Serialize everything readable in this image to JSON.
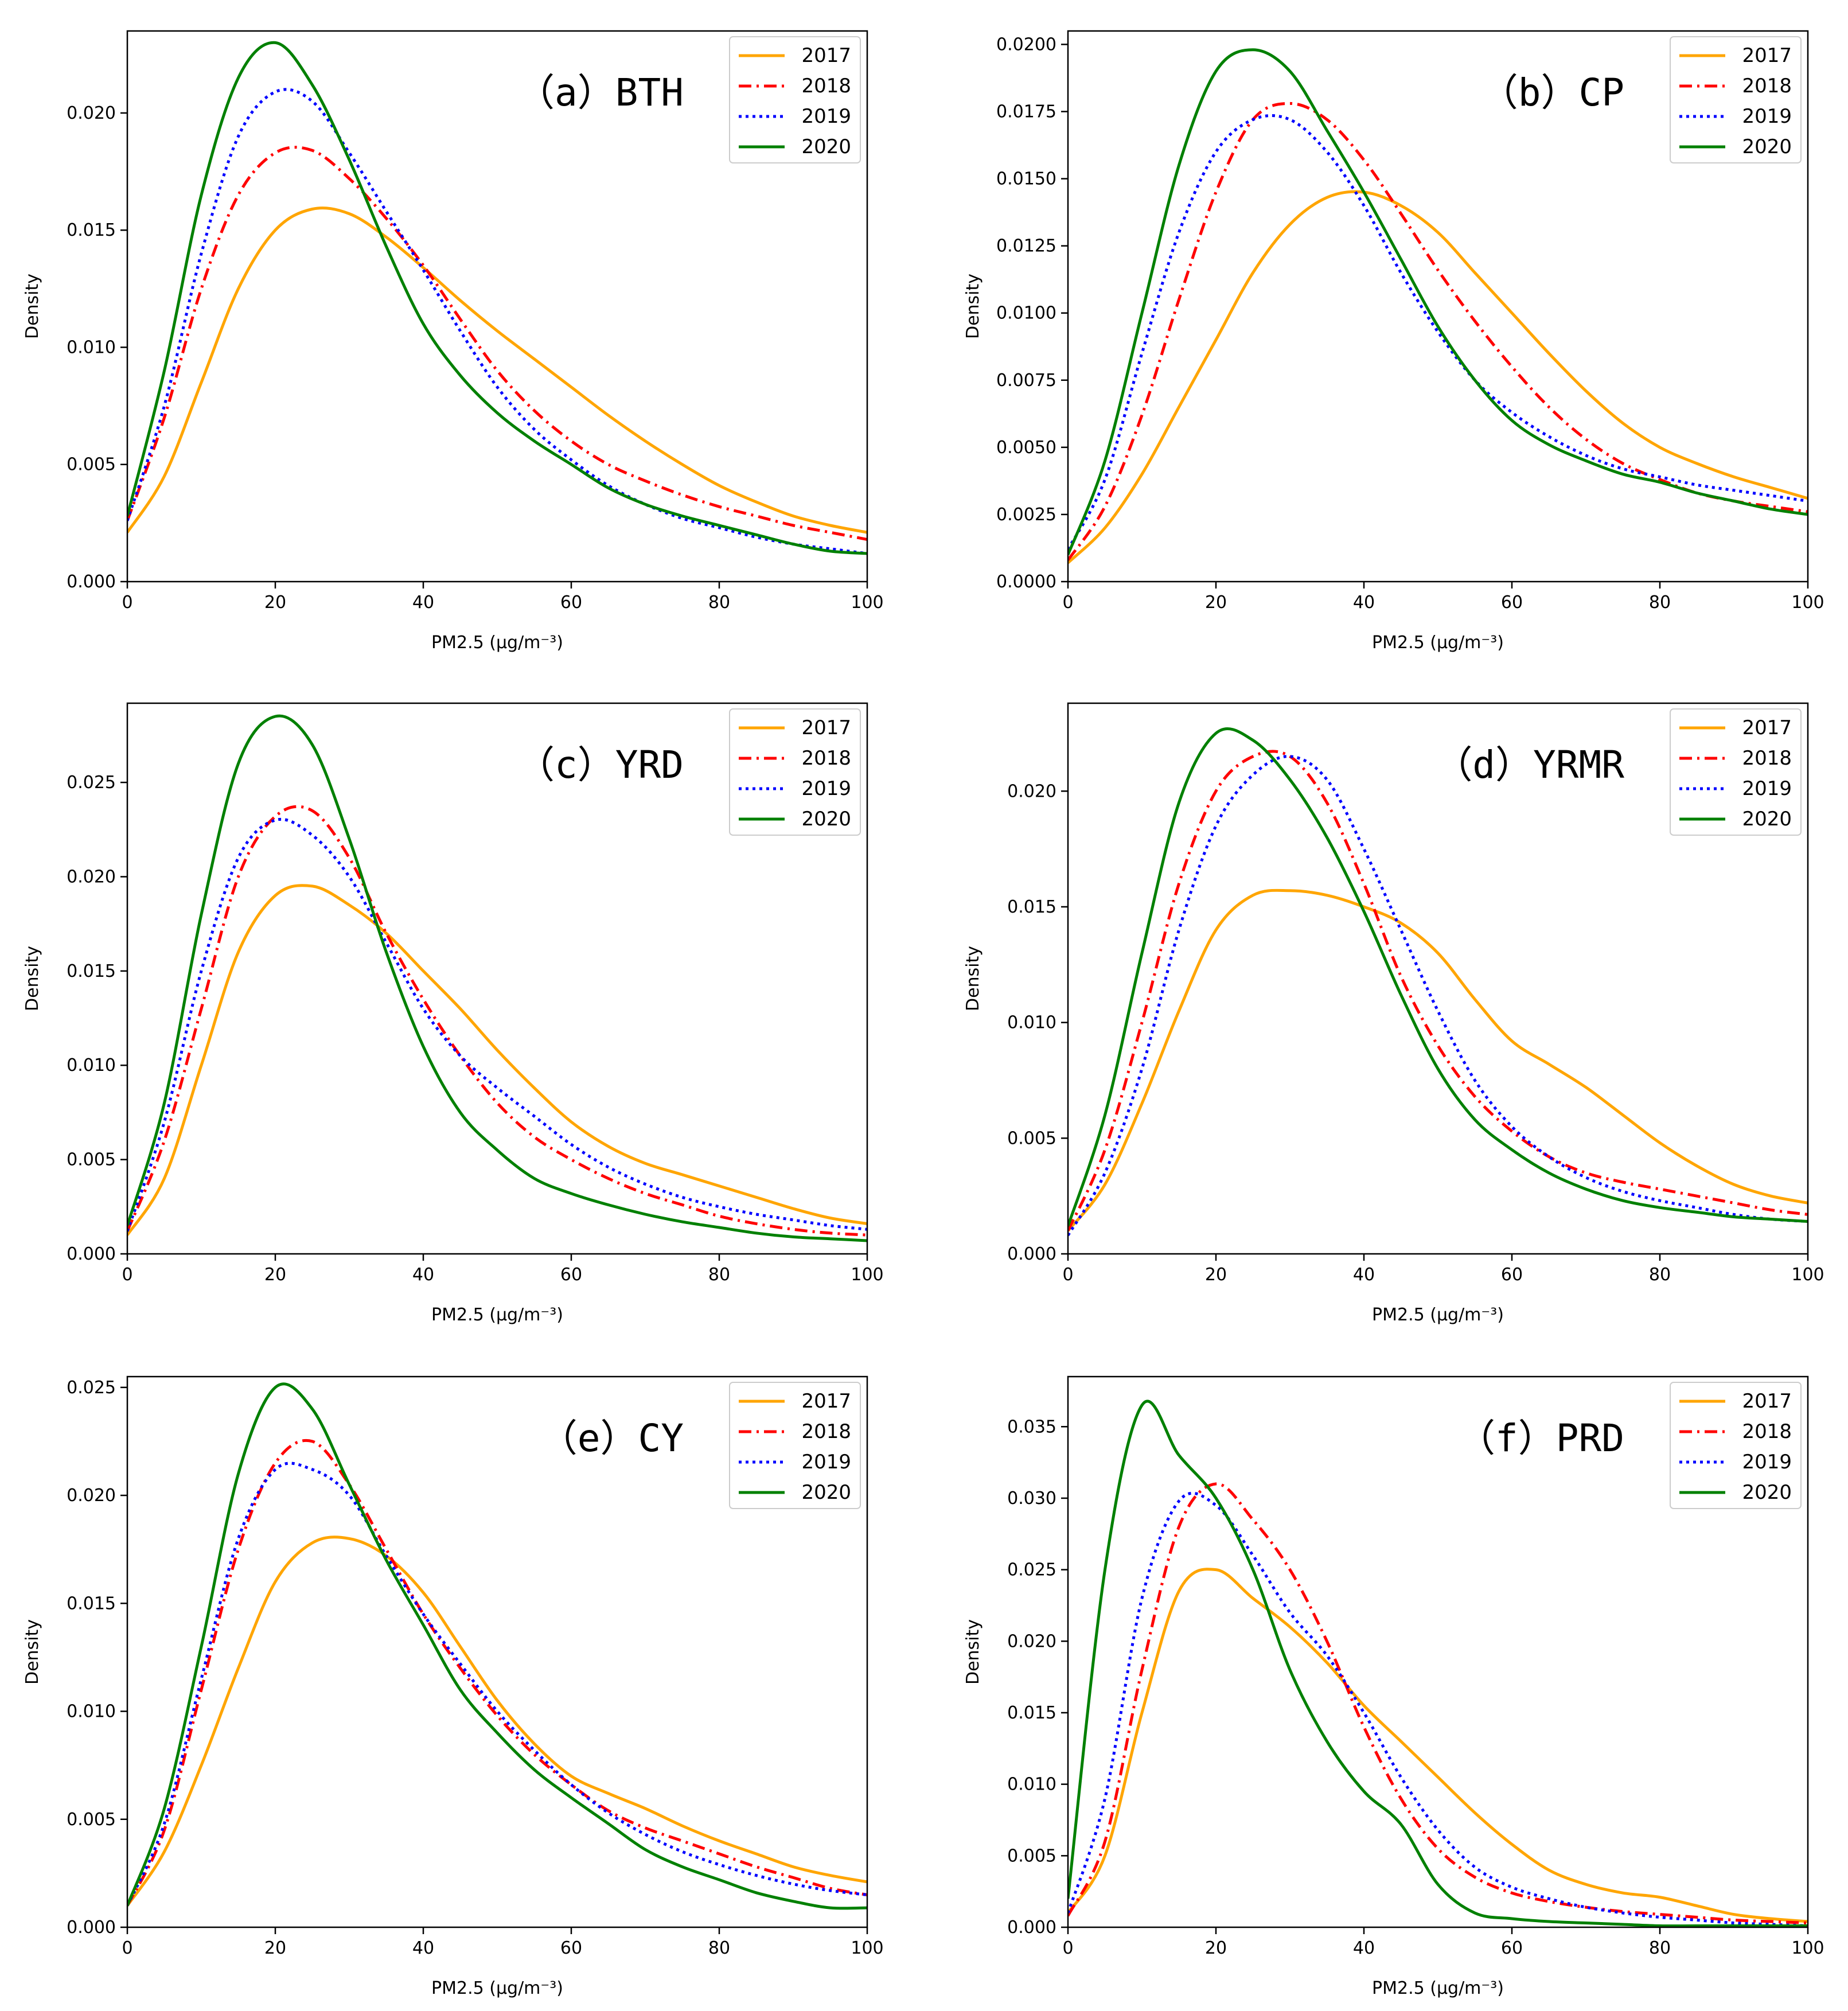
{
  "series_styles": [
    {
      "name": "2017",
      "color": "#ffa500",
      "dash": "solid"
    },
    {
      "name": "2018",
      "color": "#ff0000",
      "dash": "dashdot"
    },
    {
      "name": "2019",
      "color": "#0000ff",
      "dash": "dotted"
    },
    {
      "name": "2020",
      "color": "#008000",
      "dash": "solid"
    }
  ],
  "chart_data": [
    {
      "type": "line",
      "title": "（a）BTH",
      "xlabel": "PM2.5 (μg/m⁻³)",
      "ylabel": "Density",
      "xlim": [
        0,
        100
      ],
      "ylim": [
        0,
        0.0235
      ],
      "xticks": [
        0,
        20,
        40,
        60,
        80,
        100
      ],
      "yticks": [
        0.0,
        0.005,
        0.01,
        0.015,
        0.02
      ],
      "ytick_labels": [
        "0.000",
        "0.005",
        "0.010",
        "0.015",
        "0.020"
      ],
      "x": [
        0,
        5,
        10,
        15,
        20,
        25,
        30,
        35,
        40,
        45,
        50,
        55,
        60,
        65,
        70,
        75,
        80,
        85,
        90,
        95,
        100
      ],
      "series": [
        {
          "name": "2017",
          "values": [
            0.0021,
            0.0045,
            0.0085,
            0.0125,
            0.015,
            0.0159,
            0.0157,
            0.0147,
            0.0134,
            0.012,
            0.0107,
            0.0095,
            0.0083,
            0.0071,
            0.006,
            0.005,
            0.0041,
            0.0034,
            0.0028,
            0.0024,
            0.0021
          ]
        },
        {
          "name": "2018",
          "values": [
            0.0026,
            0.007,
            0.0125,
            0.0165,
            0.0183,
            0.0184,
            0.0172,
            0.0155,
            0.0135,
            0.0112,
            0.009,
            0.0073,
            0.006,
            0.005,
            0.0043,
            0.0037,
            0.0032,
            0.0028,
            0.0024,
            0.0021,
            0.0018
          ]
        },
        {
          "name": "2019",
          "values": [
            0.0026,
            0.0075,
            0.014,
            0.019,
            0.0209,
            0.0205,
            0.0183,
            0.0158,
            0.0133,
            0.0107,
            0.0083,
            0.0065,
            0.0052,
            0.0041,
            0.0033,
            0.0027,
            0.0023,
            0.0019,
            0.0016,
            0.0014,
            0.0012
          ]
        },
        {
          "name": "2020",
          "values": [
            0.0028,
            0.009,
            0.0165,
            0.0215,
            0.023,
            0.0212,
            0.018,
            0.0143,
            0.011,
            0.0088,
            0.0072,
            0.006,
            0.005,
            0.004,
            0.0033,
            0.0028,
            0.0024,
            0.002,
            0.0016,
            0.0013,
            0.0012
          ]
        }
      ]
    },
    {
      "type": "line",
      "title": "（b）CP",
      "xlabel": "PM2.5 (μg/m⁻³)",
      "ylabel": "Density",
      "xlim": [
        0,
        100
      ],
      "ylim": [
        0,
        0.0205
      ],
      "xticks": [
        0,
        20,
        40,
        60,
        80,
        100
      ],
      "yticks": [
        0.0,
        0.0025,
        0.005,
        0.0075,
        0.01,
        0.0125,
        0.015,
        0.0175,
        0.02
      ],
      "ytick_labels": [
        "0.0000",
        "0.0025",
        "0.0050",
        "0.0075",
        "0.0100",
        "0.0125",
        "0.0150",
        "0.0175",
        "0.0200"
      ],
      "x": [
        0,
        5,
        10,
        15,
        20,
        25,
        30,
        35,
        40,
        45,
        50,
        55,
        60,
        65,
        70,
        75,
        80,
        85,
        90,
        95,
        100
      ],
      "series": [
        {
          "name": "2017",
          "values": [
            0.0007,
            0.002,
            0.004,
            0.0065,
            0.009,
            0.0115,
            0.0133,
            0.0143,
            0.0145,
            0.014,
            0.013,
            0.0115,
            0.01,
            0.0085,
            0.0071,
            0.0059,
            0.005,
            0.0044,
            0.0039,
            0.0035,
            0.0031
          ]
        },
        {
          "name": "2018",
          "values": [
            0.0008,
            0.0028,
            0.0062,
            0.0105,
            0.0145,
            0.0172,
            0.0178,
            0.0172,
            0.0157,
            0.0137,
            0.0116,
            0.0097,
            0.008,
            0.0065,
            0.0053,
            0.0044,
            0.0038,
            0.0033,
            0.003,
            0.0028,
            0.0026
          ]
        },
        {
          "name": "2019",
          "values": [
            0.0012,
            0.0038,
            0.0085,
            0.013,
            0.016,
            0.0172,
            0.0172,
            0.016,
            0.014,
            0.0115,
            0.0093,
            0.0075,
            0.0063,
            0.0054,
            0.0047,
            0.0042,
            0.0039,
            0.0036,
            0.0034,
            0.0032,
            0.003
          ]
        },
        {
          "name": "2020",
          "values": [
            0.001,
            0.0045,
            0.01,
            0.0155,
            0.019,
            0.0198,
            0.019,
            0.0168,
            0.0145,
            0.012,
            0.0095,
            0.0075,
            0.006,
            0.0051,
            0.0045,
            0.004,
            0.0037,
            0.0033,
            0.003,
            0.0027,
            0.0025
          ]
        }
      ]
    },
    {
      "type": "line",
      "title": "（c）YRD",
      "xlabel": "PM2.5 (μg/m⁻³)",
      "ylabel": "Density",
      "xlim": [
        0,
        100
      ],
      "ylim": [
        0,
        0.0292
      ],
      "xticks": [
        0,
        20,
        40,
        60,
        80,
        100
      ],
      "yticks": [
        0.0,
        0.005,
        0.01,
        0.015,
        0.02,
        0.025
      ],
      "ytick_labels": [
        "0.000",
        "0.005",
        "0.010",
        "0.015",
        "0.020",
        "0.025"
      ],
      "x": [
        0,
        5,
        10,
        15,
        20,
        25,
        30,
        35,
        40,
        45,
        50,
        55,
        60,
        65,
        70,
        75,
        80,
        85,
        90,
        95,
        100
      ],
      "series": [
        {
          "name": "2017",
          "values": [
            0.001,
            0.004,
            0.01,
            0.016,
            0.019,
            0.0195,
            0.0185,
            0.017,
            0.015,
            0.013,
            0.0108,
            0.0088,
            0.007,
            0.0057,
            0.0048,
            0.0042,
            0.0036,
            0.003,
            0.0024,
            0.0019,
            0.0016
          ]
        },
        {
          "name": "2018",
          "values": [
            0.0012,
            0.006,
            0.013,
            0.02,
            0.0232,
            0.0235,
            0.021,
            0.017,
            0.0135,
            0.0105,
            0.008,
            0.0062,
            0.005,
            0.004,
            0.0032,
            0.0026,
            0.002,
            0.0016,
            0.0013,
            0.0011,
            0.001
          ]
        },
        {
          "name": "2019",
          "values": [
            0.0012,
            0.007,
            0.015,
            0.021,
            0.023,
            0.0222,
            0.02,
            0.0165,
            0.013,
            0.0105,
            0.0088,
            0.0073,
            0.0058,
            0.0046,
            0.0037,
            0.003,
            0.0025,
            0.0021,
            0.0018,
            0.0015,
            0.0013
          ]
        },
        {
          "name": "2020",
          "values": [
            0.0015,
            0.008,
            0.018,
            0.026,
            0.0285,
            0.027,
            0.022,
            0.016,
            0.011,
            0.0075,
            0.0055,
            0.004,
            0.0032,
            0.0026,
            0.0021,
            0.0017,
            0.0014,
            0.0011,
            0.0009,
            0.0008,
            0.0007
          ]
        }
      ]
    },
    {
      "type": "line",
      "title": "（d）YRMR",
      "xlabel": "PM2.5 (μg/m⁻³)",
      "ylabel": "Density",
      "xlim": [
        0,
        100
      ],
      "ylim": [
        0,
        0.0238
      ],
      "xticks": [
        0,
        20,
        40,
        60,
        80,
        100
      ],
      "yticks": [
        0.0,
        0.005,
        0.01,
        0.015,
        0.02
      ],
      "ytick_labels": [
        "0.000",
        "0.005",
        "0.010",
        "0.015",
        "0.020"
      ],
      "x": [
        0,
        5,
        10,
        15,
        20,
        25,
        30,
        35,
        40,
        45,
        50,
        55,
        60,
        65,
        70,
        75,
        80,
        85,
        90,
        95,
        100
      ],
      "series": [
        {
          "name": "2017",
          "values": [
            0.001,
            0.003,
            0.0065,
            0.0105,
            0.014,
            0.0155,
            0.0157,
            0.0155,
            0.015,
            0.0143,
            0.013,
            0.011,
            0.0092,
            0.0082,
            0.0072,
            0.006,
            0.0048,
            0.0038,
            0.003,
            0.0025,
            0.0022
          ]
        },
        {
          "name": "2018",
          "values": [
            0.001,
            0.0045,
            0.01,
            0.016,
            0.02,
            0.0215,
            0.0215,
            0.0195,
            0.016,
            0.012,
            0.009,
            0.0068,
            0.0053,
            0.0042,
            0.0035,
            0.0031,
            0.0028,
            0.0025,
            0.0022,
            0.0019,
            0.0017
          ]
        },
        {
          "name": "2019",
          "values": [
            0.0008,
            0.0035,
            0.008,
            0.014,
            0.0185,
            0.0207,
            0.0215,
            0.0205,
            0.0175,
            0.014,
            0.0105,
            0.0075,
            0.0055,
            0.0042,
            0.0033,
            0.0027,
            0.0023,
            0.002,
            0.0017,
            0.0015,
            0.0014
          ]
        },
        {
          "name": "2020",
          "values": [
            0.0012,
            0.006,
            0.013,
            0.0195,
            0.0225,
            0.0222,
            0.0205,
            0.018,
            0.0148,
            0.0112,
            0.008,
            0.0058,
            0.0045,
            0.0035,
            0.0028,
            0.0023,
            0.002,
            0.0018,
            0.0016,
            0.0015,
            0.0014
          ]
        }
      ]
    },
    {
      "type": "line",
      "title": "（e）CY",
      "xlabel": "PM2.5 (μg/m⁻³)",
      "ylabel": "Density",
      "xlim": [
        0,
        100
      ],
      "ylim": [
        0,
        0.0255
      ],
      "xticks": [
        0,
        20,
        40,
        60,
        80,
        100
      ],
      "yticks": [
        0.0,
        0.005,
        0.01,
        0.015,
        0.02,
        0.025
      ],
      "ytick_labels": [
        "0.000",
        "0.005",
        "0.010",
        "0.015",
        "0.020",
        "0.025"
      ],
      "x": [
        0,
        5,
        10,
        15,
        20,
        25,
        30,
        35,
        40,
        45,
        50,
        55,
        60,
        65,
        70,
        75,
        80,
        85,
        90,
        95,
        100
      ],
      "series": [
        {
          "name": "2017",
          "values": [
            0.001,
            0.0035,
            0.0075,
            0.012,
            0.016,
            0.0178,
            0.018,
            0.0172,
            0.0155,
            0.013,
            0.0105,
            0.0085,
            0.007,
            0.0062,
            0.0055,
            0.0047,
            0.004,
            0.0034,
            0.0028,
            0.0024,
            0.0021
          ]
        },
        {
          "name": "2018",
          "values": [
            0.001,
            0.0045,
            0.011,
            0.0175,
            0.0215,
            0.0225,
            0.0205,
            0.0175,
            0.0145,
            0.012,
            0.0098,
            0.008,
            0.0066,
            0.0054,
            0.0046,
            0.004,
            0.0034,
            0.0028,
            0.0023,
            0.0018,
            0.0015
          ]
        },
        {
          "name": "2019",
          "values": [
            0.001,
            0.0048,
            0.0115,
            0.018,
            0.0212,
            0.0212,
            0.02,
            0.0172,
            0.0145,
            0.0122,
            0.01,
            0.0082,
            0.0066,
            0.0053,
            0.0043,
            0.0035,
            0.0029,
            0.0024,
            0.002,
            0.0017,
            0.0015
          ]
        },
        {
          "name": "2020",
          "values": [
            0.001,
            0.0055,
            0.013,
            0.021,
            0.025,
            0.024,
            0.0205,
            0.017,
            0.014,
            0.011,
            0.009,
            0.0073,
            0.006,
            0.0048,
            0.0036,
            0.0028,
            0.0022,
            0.0016,
            0.0012,
            0.0009,
            0.0009
          ]
        }
      ]
    },
    {
      "type": "line",
      "title": "（f）PRD",
      "xlabel": "PM2.5 (μg/m⁻³)",
      "ylabel": "Density",
      "xlim": [
        0,
        100
      ],
      "ylim": [
        0,
        0.0385
      ],
      "xticks": [
        0,
        20,
        40,
        60,
        80,
        100
      ],
      "yticks": [
        0.0,
        0.005,
        0.01,
        0.015,
        0.02,
        0.025,
        0.03,
        0.035
      ],
      "ytick_labels": [
        "0.000",
        "0.005",
        "0.010",
        "0.015",
        "0.020",
        "0.025",
        "0.030",
        "0.035"
      ],
      "x": [
        0,
        5,
        10,
        15,
        20,
        25,
        30,
        35,
        40,
        45,
        50,
        55,
        60,
        65,
        70,
        75,
        80,
        85,
        90,
        95,
        100
      ],
      "series": [
        {
          "name": "2017",
          "values": [
            0.001,
            0.005,
            0.015,
            0.0235,
            0.025,
            0.023,
            0.021,
            0.0185,
            0.0155,
            0.013,
            0.0105,
            0.008,
            0.0058,
            0.004,
            0.003,
            0.0024,
            0.0021,
            0.0015,
            0.0009,
            0.0006,
            0.0004
          ]
        },
        {
          "name": "2018",
          "values": [
            0.0008,
            0.006,
            0.018,
            0.028,
            0.031,
            0.0285,
            0.025,
            0.02,
            0.014,
            0.009,
            0.0055,
            0.0035,
            0.0024,
            0.0018,
            0.0014,
            0.0011,
            0.0009,
            0.0007,
            0.0005,
            0.0004,
            0.0003
          ]
        },
        {
          "name": "2019",
          "values": [
            0.001,
            0.009,
            0.023,
            0.0298,
            0.0295,
            0.026,
            0.022,
            0.019,
            0.015,
            0.0105,
            0.0068,
            0.0042,
            0.0028,
            0.002,
            0.0014,
            0.001,
            0.0007,
            0.0005,
            0.0003,
            0.0002,
            0.0001
          ]
        },
        {
          "name": "2020",
          "values": [
            0.002,
            0.025,
            0.0365,
            0.033,
            0.03,
            0.025,
            0.018,
            0.013,
            0.0095,
            0.0072,
            0.003,
            0.001,
            0.0006,
            0.0004,
            0.0003,
            0.0002,
            0.0001,
            0.0001,
            0.0001,
            0.0001,
            0.0001
          ]
        }
      ]
    }
  ]
}
